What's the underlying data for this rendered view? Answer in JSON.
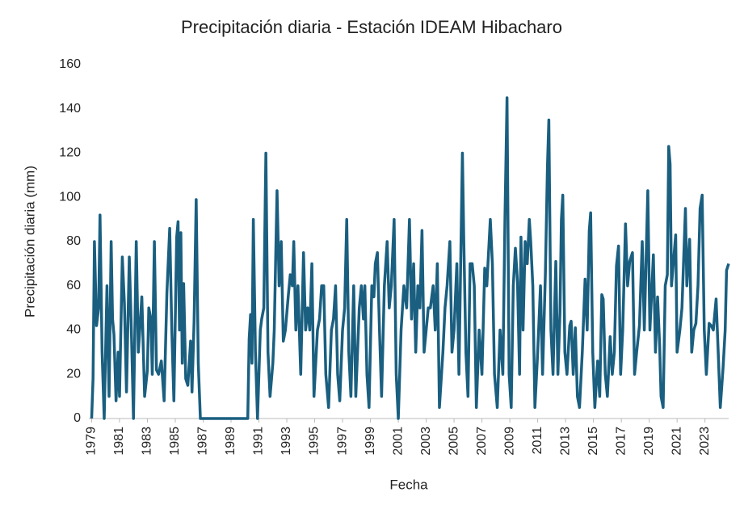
{
  "chart_data": {
    "type": "line",
    "title": "Precipitación diaria - Estación IDEAM Hibacharo",
    "x_label": "Fecha",
    "y_label": "Precipitación diaria (mm)",
    "xlim": [
      1978.8,
      2024.7
    ],
    "xticks": [
      1979,
      1981,
      1983,
      1985,
      1987,
      1989,
      1991,
      1993,
      1995,
      1997,
      1999,
      2001,
      2003,
      2005,
      2007,
      2009,
      2011,
      2013,
      2015,
      2017,
      2019,
      2021,
      2023
    ],
    "ylim": [
      0,
      160
    ],
    "yticks": [
      0,
      20,
      40,
      60,
      80,
      100,
      120,
      140,
      160
    ],
    "grid": false,
    "series": [
      {
        "color": "#1a5f80",
        "x": [
          1979.0,
          1979.1,
          1979.2,
          1979.35,
          1979.5,
          1979.6,
          1979.75,
          1979.9,
          1980.1,
          1980.25,
          1980.4,
          1980.5,
          1980.6,
          1980.75,
          1980.9,
          1981.0,
          1981.2,
          1981.35,
          1981.5,
          1981.7,
          1981.85,
          1982.0,
          1982.2,
          1982.35,
          1982.5,
          1982.6,
          1982.8,
          1983.0,
          1983.1,
          1983.25,
          1983.35,
          1983.5,
          1983.65,
          1983.8,
          1984.0,
          1984.2,
          1984.4,
          1984.6,
          1984.75,
          1984.9,
          1985.1,
          1985.2,
          1985.3,
          1985.4,
          1985.5,
          1985.6,
          1985.75,
          1985.9,
          1986.1,
          1986.2,
          1986.35,
          1986.5,
          1986.65,
          1986.8,
          1990.2,
          1990.3,
          1990.4,
          1990.5,
          1990.6,
          1990.75,
          1990.9,
          1991.1,
          1991.2,
          1991.35,
          1991.5,
          1991.65,
          1991.8,
          1992.0,
          1992.1,
          1992.3,
          1992.45,
          1992.6,
          1992.75,
          1992.9,
          1993.1,
          1993.25,
          1993.4,
          1993.5,
          1993.65,
          1993.8,
          1994.0,
          1994.2,
          1994.35,
          1994.5,
          1994.65,
          1994.8,
          1994.95,
          1995.2,
          1995.35,
          1995.5,
          1995.65,
          1995.8,
          1996.0,
          1996.2,
          1996.35,
          1996.5,
          1996.65,
          1996.8,
          1997.0,
          1997.15,
          1997.3,
          1997.45,
          1997.6,
          1997.8,
          1997.95,
          1998.2,
          1998.35,
          1998.5,
          1998.6,
          1998.75,
          1998.9,
          1999.1,
          1999.25,
          1999.35,
          1999.5,
          1999.65,
          1999.8,
          2000.0,
          2000.2,
          2000.35,
          2000.5,
          2000.7,
          2000.85,
          2001.0,
          2001.2,
          2001.4,
          2001.6,
          2001.8,
          2001.95,
          2002.1,
          2002.25,
          2002.4,
          2002.55,
          2002.7,
          2002.85,
          2003.0,
          2003.15,
          2003.3,
          2003.5,
          2003.65,
          2003.8,
          2003.95,
          2004.2,
          2004.35,
          2004.5,
          2004.7,
          2004.85,
          2005.0,
          2005.2,
          2005.35,
          2005.6,
          2005.7,
          2005.85,
          2006.0,
          2006.15,
          2006.3,
          2006.45,
          2006.6,
          2006.8,
          2007.0,
          2007.2,
          2007.35,
          2007.6,
          2007.75,
          2007.9,
          2008.1,
          2008.3,
          2008.5,
          2008.65,
          2008.8,
          2008.95,
          2009.1,
          2009.25,
          2009.4,
          2009.55,
          2009.7,
          2009.8,
          2009.95,
          2010.1,
          2010.25,
          2010.4,
          2010.5,
          2010.65,
          2010.8,
          2011.0,
          2011.2,
          2011.35,
          2011.55,
          2011.7,
          2011.8,
          2011.95,
          2012.1,
          2012.3,
          2012.45,
          2012.6,
          2012.7,
          2012.8,
          2012.95,
          2013.1,
          2013.3,
          2013.4,
          2013.55,
          2013.7,
          2013.85,
          2014.0,
          2014.2,
          2014.4,
          2014.55,
          2014.7,
          2014.8,
          2014.95,
          2015.1,
          2015.3,
          2015.45,
          2015.6,
          2015.7,
          2015.85,
          2016.0,
          2016.2,
          2016.35,
          2016.5,
          2016.65,
          2016.8,
          2016.95,
          2017.1,
          2017.3,
          2017.45,
          2017.6,
          2017.8,
          2017.95,
          2018.1,
          2018.3,
          2018.5,
          2018.65,
          2018.8,
          2018.9,
          2019.05,
          2019.2,
          2019.3,
          2019.45,
          2019.6,
          2019.75,
          2019.85,
          2020.0,
          2020.15,
          2020.3,
          2020.4,
          2020.5,
          2020.6,
          2020.7,
          2020.9,
          2021.0,
          2021.2,
          2021.35,
          2021.6,
          2021.7,
          2021.9,
          2022.05,
          2022.2,
          2022.35,
          2022.5,
          2022.65,
          2022.8,
          2022.95,
          2023.1,
          2023.3,
          2023.45,
          2023.6,
          2023.8,
          2023.95,
          2024.1,
          2024.3,
          2024.45,
          2024.55,
          2024.7
        ],
        "values": [
          0,
          18,
          80,
          42,
          50,
          92,
          30,
          0,
          60,
          10,
          80,
          45,
          38,
          8,
          30,
          10,
          73,
          52,
          12,
          73,
          40,
          0,
          80,
          30,
          45,
          55,
          10,
          22,
          50,
          45,
          20,
          80,
          22,
          20,
          26,
          8,
          57,
          86,
          40,
          8,
          82,
          89,
          40,
          84,
          25,
          61,
          18,
          15,
          35,
          12,
          44,
          99,
          25,
          0,
          0,
          36,
          47,
          25,
          90,
          30,
          0,
          40,
          45,
          50,
          120,
          30,
          10,
          25,
          40,
          103,
          60,
          80,
          35,
          40,
          55,
          65,
          60,
          80,
          40,
          60,
          20,
          75,
          40,
          50,
          40,
          70,
          10,
          40,
          45,
          60,
          60,
          20,
          5,
          40,
          45,
          60,
          20,
          8,
          40,
          50,
          90,
          30,
          10,
          60,
          10,
          50,
          60,
          45,
          60,
          20,
          5,
          60,
          55,
          70,
          75,
          40,
          10,
          60,
          80,
          50,
          60,
          90,
          20,
          0,
          40,
          60,
          50,
          90,
          45,
          70,
          30,
          60,
          50,
          85,
          30,
          40,
          50,
          50,
          60,
          40,
          70,
          5,
          30,
          50,
          60,
          80,
          30,
          40,
          70,
          20,
          120,
          80,
          30,
          10,
          70,
          70,
          60,
          5,
          40,
          20,
          68,
          60,
          90,
          70,
          20,
          5,
          40,
          20,
          90,
          145,
          20,
          5,
          60,
          77,
          62,
          20,
          82,
          40,
          80,
          70,
          90,
          80,
          60,
          5,
          30,
          60,
          20,
          65,
          114,
          135,
          40,
          20,
          71,
          20,
          48,
          90,
          101,
          30,
          20,
          42,
          44,
          20,
          41,
          10,
          5,
          30,
          63,
          40,
          85,
          93,
          30,
          5,
          26,
          10,
          56,
          54,
          20,
          10,
          37,
          20,
          30,
          69,
          78,
          20,
          40,
          88,
          60,
          71,
          75,
          20,
          30,
          42,
          80,
          40,
          78,
          103,
          40,
          60,
          74,
          30,
          55,
          33,
          10,
          5,
          60,
          65,
          123,
          115,
          60,
          68,
          83,
          30,
          40,
          50,
          95,
          60,
          81,
          30,
          40,
          43,
          60,
          95,
          101,
          40,
          20,
          43,
          42,
          40,
          54,
          30,
          5,
          23,
          40,
          67,
          70
        ]
      }
    ]
  }
}
